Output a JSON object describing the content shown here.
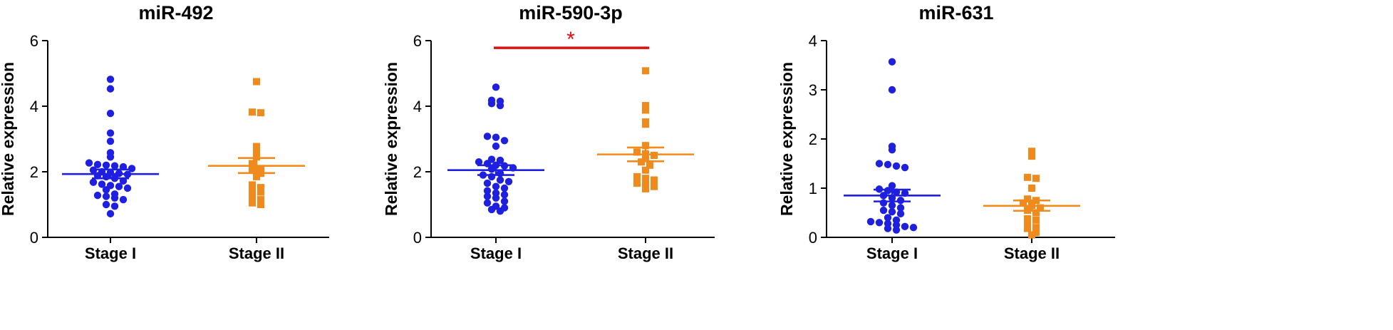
{
  "chart_data": [
    {
      "type": "scatter",
      "title": "miR-492",
      "ylabel": "Relative expression",
      "ylim": [
        0,
        6
      ],
      "yticks": [
        0,
        2,
        4,
        6
      ],
      "categories": [
        "Stage I",
        "Stage II"
      ],
      "significance": null,
      "series": [
        {
          "category": "Stage I",
          "color": "#1f1fe0",
          "marker": "circle",
          "mean": 1.93,
          "sem_low": 1.8,
          "sem_high": 2.07,
          "values": [
            4.82,
            4.53,
            3.78,
            3.18,
            2.93,
            2.58,
            2.45,
            2.27,
            2.22,
            2.2,
            2.18,
            2.15,
            2.1,
            2.05,
            2.0,
            1.98,
            1.95,
            1.92,
            1.88,
            1.85,
            1.8,
            1.72,
            1.68,
            1.62,
            1.58,
            1.55,
            1.5,
            1.45,
            1.32,
            1.28,
            1.25,
            1.2,
            1.15,
            1.0,
            0.95,
            0.72
          ]
        },
        {
          "category": "Stage II",
          "color": "#f08a1c",
          "marker": "square",
          "mean": 2.18,
          "sem_low": 1.96,
          "sem_high": 2.42,
          "values": [
            4.75,
            3.82,
            3.8,
            2.77,
            2.6,
            2.45,
            2.25,
            2.1,
            2.05,
            1.95,
            1.85,
            1.6,
            1.52,
            1.45,
            1.38,
            1.25,
            1.15,
            1.05,
            1.0
          ]
        }
      ]
    },
    {
      "type": "scatter",
      "title": "miR-590-3p",
      "ylabel": "Relative expression",
      "ylim": [
        0,
        6
      ],
      "yticks": [
        0,
        2,
        4,
        6
      ],
      "categories": [
        "Stage I",
        "Stage II"
      ],
      "significance": {
        "label": "*",
        "color": "#e01010",
        "y": 5.78
      },
      "series": [
        {
          "category": "Stage I",
          "color": "#1f1fe0",
          "marker": "circle",
          "mean": 2.05,
          "sem_low": 1.9,
          "sem_high": 2.2,
          "values": [
            4.58,
            4.18,
            4.15,
            4.08,
            4.02,
            3.08,
            3.05,
            2.95,
            2.78,
            2.38,
            2.35,
            2.3,
            2.25,
            2.2,
            2.18,
            2.12,
            2.08,
            1.95,
            1.9,
            1.85,
            1.75,
            1.7,
            1.65,
            1.55,
            1.5,
            1.42,
            1.35,
            1.3,
            1.25,
            1.2,
            1.1,
            1.05,
            0.95,
            0.9,
            0.85,
            0.8
          ]
        },
        {
          "category": "Stage II",
          "color": "#f08a1c",
          "marker": "square",
          "mean": 2.53,
          "sem_low": 2.32,
          "sem_high": 2.74,
          "values": [
            5.08,
            4.02,
            3.88,
            3.52,
            3.45,
            2.8,
            2.6,
            2.55,
            2.5,
            2.45,
            2.3,
            2.2,
            2.05,
            1.85,
            1.8,
            1.75,
            1.65,
            1.6,
            1.55,
            1.48
          ]
        }
      ]
    },
    {
      "type": "scatter",
      "title": "miR-631",
      "ylabel": "Relative expression",
      "ylim": [
        0,
        4
      ],
      "yticks": [
        0,
        1,
        2,
        3,
        4
      ],
      "categories": [
        "Stage I",
        "Stage II"
      ],
      "significance": null,
      "series": [
        {
          "category": "Stage I",
          "color": "#1f1fe0",
          "marker": "circle",
          "mean": 0.85,
          "sem_low": 0.73,
          "sem_high": 0.97,
          "values": [
            3.57,
            3.0,
            1.85,
            1.78,
            1.5,
            1.48,
            1.45,
            1.42,
            1.05,
            0.98,
            0.95,
            0.92,
            0.9,
            0.85,
            0.8,
            0.75,
            0.7,
            0.65,
            0.6,
            0.55,
            0.52,
            0.48,
            0.4,
            0.35,
            0.32,
            0.3,
            0.28,
            0.25,
            0.22,
            0.2,
            0.18,
            0.15
          ]
        },
        {
          "category": "Stage II",
          "color": "#f08a1c",
          "marker": "square",
          "mean": 0.64,
          "sem_low": 0.54,
          "sem_high": 0.75,
          "values": [
            1.75,
            1.65,
            1.22,
            1.2,
            1.0,
            0.78,
            0.75,
            0.7,
            0.65,
            0.6,
            0.55,
            0.5,
            0.38,
            0.35,
            0.25,
            0.2,
            0.18,
            0.1,
            0.05
          ]
        }
      ]
    }
  ]
}
